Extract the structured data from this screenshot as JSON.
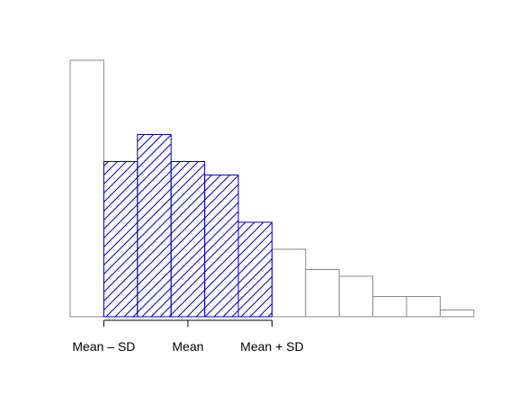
{
  "chart_data": {
    "type": "bar",
    "title": "",
    "xlabel": "",
    "ylabel": "",
    "ylim": [
      0,
      19
    ],
    "grid": false,
    "bins": 12,
    "values": [
      19,
      11.5,
      13.5,
      11.5,
      10.5,
      7,
      5,
      3.5,
      3,
      1.5,
      1.5,
      0.5
    ],
    "highlighted": [
      false,
      true,
      true,
      true,
      true,
      true,
      false,
      false,
      false,
      false,
      false,
      false
    ],
    "axis_ticks": [
      {
        "bin_edge": 1,
        "label": "Mean – SD"
      },
      {
        "bin_edge": 3.5,
        "label": "Mean"
      },
      {
        "bin_edge": 6,
        "label": "Mean + SD"
      }
    ],
    "colors": {
      "highlight_stroke": "#0000cc",
      "hatch": "#0000cc",
      "plain_stroke": "#888888",
      "axis": "#000000"
    }
  }
}
